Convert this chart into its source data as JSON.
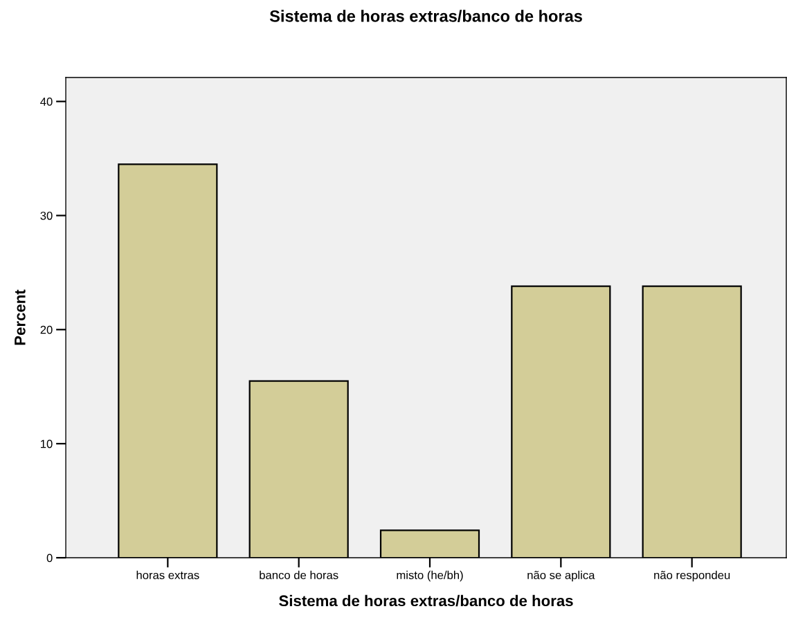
{
  "chart_data": {
    "type": "bar",
    "title": "Sistema de horas extras/banco de horas",
    "xlabel": "Sistema de horas extras/banco de horas",
    "ylabel": "Percent",
    "categories": [
      "horas extras",
      "banco de horas",
      "misto (he/bh)",
      "não se aplica",
      "não respondeu"
    ],
    "values": [
      34.5,
      15.5,
      2.4,
      23.8,
      23.8
    ],
    "color": "#d3cd98",
    "ylim": [
      0,
      42.1
    ],
    "yticks": [
      0,
      10,
      20,
      30,
      40
    ],
    "grid": false,
    "legend": false
  }
}
